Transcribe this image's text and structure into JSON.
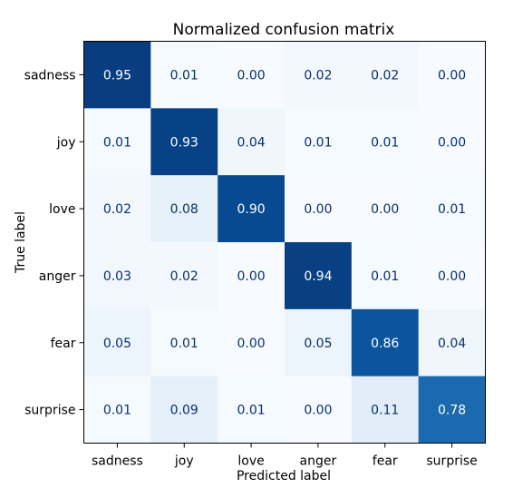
{
  "chart_data": {
    "type": "heatmap",
    "title": "Normalized confusion matrix",
    "xlabel": "Predicted label",
    "ylabel": "True label",
    "x_categories": [
      "sadness",
      "joy",
      "love",
      "anger",
      "fear",
      "surprise"
    ],
    "y_categories": [
      "sadness",
      "joy",
      "love",
      "anger",
      "fear",
      "surprise"
    ],
    "values": [
      [
        0.95,
        0.01,
        0.0,
        0.02,
        0.02,
        0.0
      ],
      [
        0.01,
        0.93,
        0.04,
        0.01,
        0.01,
        0.0
      ],
      [
        0.02,
        0.08,
        0.9,
        0.0,
        0.0,
        0.01
      ],
      [
        0.03,
        0.02,
        0.0,
        0.94,
        0.01,
        0.0
      ],
      [
        0.05,
        0.01,
        0.0,
        0.05,
        0.86,
        0.04
      ],
      [
        0.01,
        0.09,
        0.01,
        0.0,
        0.11,
        0.78
      ]
    ],
    "value_range": [
      0,
      1
    ],
    "colormap": "Blues",
    "colormap_low": "#f7fbff",
    "colormap_high": "#08306b",
    "annotation_light_text": "#ffffff",
    "annotation_dark_text": "#08306b",
    "grid": false
  }
}
